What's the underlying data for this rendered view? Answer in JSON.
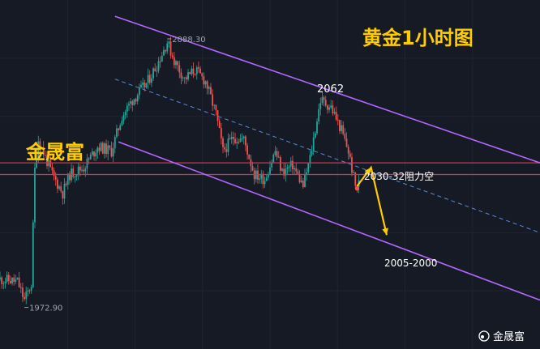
{
  "chart_data": {
    "type": "candlestick",
    "title": "黄金1小时图",
    "watermark_label": "金晟富",
    "footer_watermark": "金晟富",
    "colors": {
      "background": "#161a25",
      "up": "#26a69a",
      "down": "#ef5350",
      "channel": "#b367ff",
      "midline": "#5b8bd9",
      "resistance": "#d6344e",
      "arrow": "#ffcc00",
      "annotation": "#ffcc00"
    },
    "ylim": [
      1955,
      2105
    ],
    "x_range": [
      0,
      310
    ],
    "price_markers": {
      "high": {
        "label": "2088.30",
        "x": 96,
        "value": 2088.3
      },
      "low": {
        "label": "1972.90",
        "x": 14,
        "value": 1972.9
      }
    },
    "annotations": {
      "peak_label": "2062",
      "resistance_label": "2030-32阻力空",
      "target_label": "2005-2000"
    },
    "resistance_zone": [
      2030,
      2035
    ],
    "channel": {
      "upper": [
        [
          66,
          2098
        ],
        [
          310,
          2035
        ]
      ],
      "lower": [
        [
          68,
          2044
        ],
        [
          310,
          1976
        ]
      ],
      "middle": [
        [
          66,
          2071
        ],
        [
          310,
          2005
        ]
      ]
    },
    "arrow_path": [
      [
        205,
        2025
      ],
      [
        213,
        2033
      ],
      [
        222,
        2004
      ]
    ],
    "last_marker": {
      "x": 205,
      "value": 2024
    },
    "anchors": [
      [
        0,
        1985
      ],
      [
        10,
        1984
      ],
      [
        14,
        1976
      ],
      [
        18,
        1983
      ],
      [
        20,
        2032
      ],
      [
        22,
        2045
      ],
      [
        30,
        2030
      ],
      [
        36,
        2022
      ],
      [
        40,
        2030
      ],
      [
        48,
        2033
      ],
      [
        56,
        2042
      ],
      [
        64,
        2040
      ],
      [
        70,
        2055
      ],
      [
        76,
        2062
      ],
      [
        84,
        2069
      ],
      [
        90,
        2077
      ],
      [
        96,
        2087
      ],
      [
        100,
        2079
      ],
      [
        106,
        2071
      ],
      [
        112,
        2075
      ],
      [
        118,
        2070
      ],
      [
        124,
        2056
      ],
      [
        128,
        2040
      ],
      [
        134,
        2046
      ],
      [
        140,
        2045
      ],
      [
        146,
        2030
      ],
      [
        152,
        2028
      ],
      [
        158,
        2040
      ],
      [
        162,
        2031
      ],
      [
        168,
        2034
      ],
      [
        174,
        2025
      ],
      [
        178,
        2037
      ],
      [
        184,
        2062
      ],
      [
        190,
        2059
      ],
      [
        196,
        2049
      ],
      [
        200,
        2040
      ],
      [
        204,
        2025
      ],
      [
        206,
        2026
      ]
    ]
  }
}
